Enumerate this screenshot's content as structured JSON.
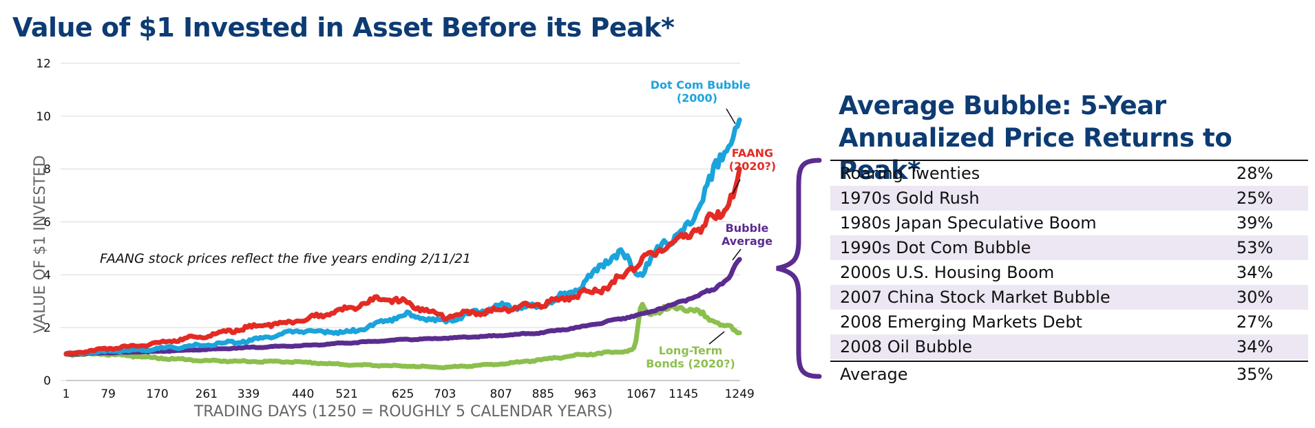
{
  "title": "Value of $1 Invested in Asset Before its Peak*",
  "chart_data": {
    "type": "line",
    "xlabel": "TRADING DAYS (1250 = ROUGHLY 5 CALENDAR YEARS)",
    "ylabel": "VALUE OF $1 INVESTED",
    "xlim": [
      1,
      1250
    ],
    "ylim": [
      0,
      12
    ],
    "x_ticks": [
      1,
      79,
      170,
      261,
      339,
      440,
      521,
      625,
      703,
      807,
      885,
      963,
      1067,
      1145,
      1249
    ],
    "y_ticks": [
      0,
      2,
      4,
      6,
      8,
      10,
      12
    ],
    "grid": "horizontal",
    "annotation": "FAANG stock prices reflect the five years ending 2/11/21",
    "series": [
      {
        "name": "Dot Com Bubble (2000)",
        "color": "#1ba3dc",
        "x": [
          1,
          79,
          170,
          261,
          339,
          440,
          521,
          570,
          625,
          703,
          760,
          807,
          885,
          963,
          1000,
          1030,
          1067,
          1110,
          1145,
          1180,
          1210,
          1235,
          1249
        ],
        "y": [
          1.0,
          1.1,
          1.2,
          1.35,
          1.5,
          1.9,
          1.8,
          2.1,
          2.5,
          2.2,
          2.6,
          2.8,
          2.8,
          3.7,
          4.5,
          4.8,
          4.0,
          5.3,
          5.5,
          6.9,
          8.2,
          9.3,
          10.0
        ]
      },
      {
        "name": "FAANG (2020?)",
        "color": "#e32b24",
        "x": [
          1,
          79,
          170,
          261,
          339,
          440,
          521,
          580,
          625,
          703,
          807,
          885,
          963,
          1000,
          1030,
          1067,
          1110,
          1145,
          1180,
          1210,
          1235,
          1249
        ],
        "y": [
          1.0,
          1.2,
          1.4,
          1.7,
          2.0,
          2.3,
          2.7,
          3.1,
          3.0,
          2.4,
          2.7,
          2.9,
          3.3,
          3.5,
          3.9,
          4.6,
          5.0,
          5.5,
          5.8,
          6.3,
          7.0,
          7.6
        ]
      },
      {
        "name": "Bubble Average",
        "color": "#5b2c8f",
        "x": [
          1,
          79,
          170,
          261,
          339,
          440,
          521,
          625,
          703,
          807,
          885,
          963,
          1067,
          1145,
          1200,
          1230,
          1249
        ],
        "y": [
          1.0,
          1.05,
          1.1,
          1.18,
          1.25,
          1.32,
          1.42,
          1.55,
          1.6,
          1.7,
          1.82,
          2.05,
          2.5,
          3.0,
          3.45,
          3.9,
          4.6
        ]
      },
      {
        "name": "Long-Term Bonds (2020?)",
        "color": "#8cbf4e",
        "x": [
          1,
          79,
          170,
          261,
          339,
          440,
          521,
          625,
          703,
          807,
          885,
          963,
          1020,
          1055,
          1067,
          1080,
          1110,
          1145,
          1170,
          1200,
          1230,
          1249
        ],
        "y": [
          1.0,
          1.0,
          0.85,
          0.75,
          0.72,
          0.7,
          0.6,
          0.55,
          0.5,
          0.62,
          0.8,
          1.0,
          1.05,
          1.2,
          2.9,
          2.5,
          2.7,
          2.8,
          2.6,
          2.3,
          2.0,
          1.8
        ]
      }
    ]
  },
  "labels": {
    "dotcom": [
      "Dot Com Bubble",
      "(2000)"
    ],
    "faang": [
      "FAANG",
      "(2020?)"
    ],
    "bubble": [
      "Bubble",
      "Average"
    ],
    "bonds": [
      "Long-Term",
      "Bonds (2020?)"
    ]
  },
  "table": {
    "title": "Average Bubble: 5-Year Annualized Price Returns to Peak*",
    "rows": [
      {
        "label": "Roaring Twenties",
        "value": "28%"
      },
      {
        "label": "1970s Gold Rush",
        "value": "25%"
      },
      {
        "label": "1980s Japan Speculative Boom",
        "value": "39%"
      },
      {
        "label": "1990s Dot Com Bubble",
        "value": "53%"
      },
      {
        "label": "2000s U.S. Housing Boom",
        "value": "34%"
      },
      {
        "label": "2007 China Stock Market Bubble",
        "value": "30%"
      },
      {
        "label": "2008 Emerging Markets Debt",
        "value": "27%"
      },
      {
        "label": "2008 Oil Bubble",
        "value": "34%"
      }
    ],
    "average": {
      "label": "Average",
      "value": "35%"
    }
  },
  "colors": {
    "title": "#0d3b73",
    "shade": "#ece7f2",
    "brace": "#5b2c8f"
  }
}
